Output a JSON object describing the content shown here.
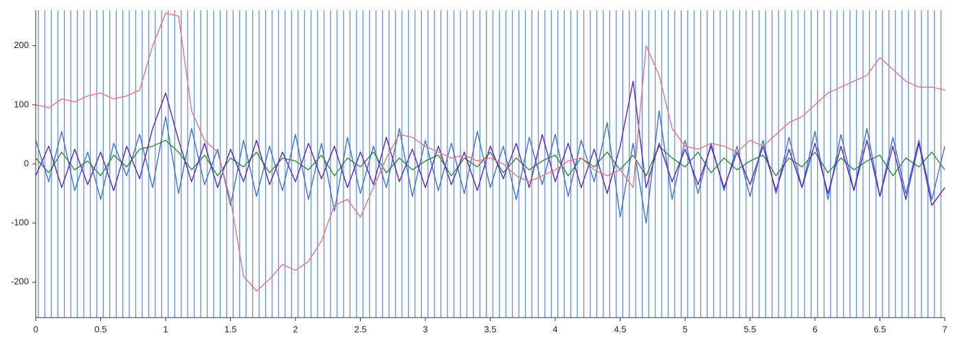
{
  "chart_data": {
    "type": "line",
    "x": [
      0,
      0.1,
      0.2,
      0.3,
      0.4,
      0.5,
      0.6,
      0.7,
      0.8,
      0.9,
      1,
      1.1,
      1.2,
      1.3,
      1.4,
      1.5,
      1.6,
      1.7,
      1.8,
      1.9,
      2,
      2.1,
      2.2,
      2.3,
      2.4,
      2.5,
      2.6,
      2.7,
      2.8,
      2.9,
      3,
      3.1,
      3.2,
      3.3,
      3.4,
      3.5,
      3.6,
      3.7,
      3.8,
      3.9,
      4,
      4.1,
      4.2,
      4.3,
      4.4,
      4.5,
      4.6,
      4.7,
      4.8,
      4.9,
      5,
      5.1,
      5.2,
      5.3,
      5.4,
      5.5,
      5.6,
      5.7,
      5.8,
      5.9,
      6,
      6.1,
      6.2,
      6.3,
      6.4,
      6.5,
      6.6,
      6.7,
      6.8,
      6.9,
      7
    ],
    "series": [
      {
        "color": "#3b6fe0",
        "values": [
          40,
          -30,
          55,
          -45,
          20,
          -60,
          35,
          -20,
          50,
          -40,
          80,
          -50,
          60,
          -35,
          25,
          -70,
          40,
          -55,
          30,
          -45,
          50,
          -60,
          35,
          -80,
          45,
          -50,
          30,
          -40,
          60,
          -55,
          40,
          -45,
          35,
          -50,
          55,
          -40,
          30,
          -60,
          45,
          -35,
          50,
          -55,
          40,
          -30,
          70,
          -90,
          35,
          -100,
          90,
          -60,
          40,
          -50,
          35,
          -45,
          30,
          -55,
          40,
          -50,
          45,
          -40,
          55,
          -60,
          50,
          -45,
          60,
          -55,
          45,
          -50,
          40,
          -60,
          30
        ]
      },
      {
        "color": "#2e8b2e",
        "values": [
          10,
          -15,
          20,
          -10,
          5,
          -20,
          15,
          -5,
          25,
          30,
          40,
          20,
          -10,
          15,
          -20,
          10,
          -5,
          20,
          -15,
          10,
          5,
          -10,
          15,
          -20,
          10,
          -5,
          20,
          -15,
          10,
          -10,
          5,
          15,
          -20,
          10,
          -5,
          20,
          -15,
          10,
          -10,
          5,
          15,
          -20,
          10,
          -5,
          20,
          -10,
          15,
          -20,
          30,
          10,
          -5,
          20,
          -15,
          10,
          -10,
          5,
          15,
          -20,
          10,
          -5,
          20,
          -15,
          10,
          -10,
          5,
          15,
          -20,
          10,
          -5,
          20,
          -10
        ]
      },
      {
        "color": "#5a1fd0",
        "values": [
          -20,
          30,
          -40,
          25,
          -35,
          20,
          -45,
          30,
          -25,
          60,
          120,
          40,
          -30,
          35,
          -40,
          25,
          -30,
          40,
          -35,
          20,
          -30,
          35,
          -25,
          30,
          -40,
          20,
          -35,
          45,
          -30,
          25,
          -40,
          30,
          -35,
          20,
          -45,
          30,
          -25,
          35,
          -40,
          50,
          -30,
          35,
          -40,
          25,
          -50,
          30,
          140,
          -40,
          35,
          -30,
          25,
          -35,
          30,
          -40,
          20,
          -35,
          30,
          -45,
          25,
          -40,
          35,
          -50,
          30,
          -45,
          40,
          -55,
          30,
          -60,
          35,
          -70,
          -40
        ]
      },
      {
        "color": "#e8737a",
        "values": [
          100,
          95,
          110,
          105,
          115,
          120,
          110,
          115,
          125,
          200,
          255,
          250,
          90,
          40,
          20,
          -60,
          -190,
          -215,
          -195,
          -170,
          -180,
          -165,
          -130,
          -70,
          -60,
          -90,
          -40,
          10,
          50,
          45,
          30,
          20,
          10,
          15,
          5,
          10,
          0,
          -20,
          -30,
          -20,
          -10,
          5,
          10,
          -10,
          -20,
          -10,
          -40,
          200,
          150,
          60,
          30,
          25,
          35,
          30,
          20,
          40,
          30,
          50,
          70,
          80,
          100,
          120,
          130,
          140,
          150,
          180,
          160,
          140,
          130,
          130,
          125
        ]
      }
    ],
    "event_x": [
      0.02,
      0.07,
      0.12,
      0.17,
      0.22,
      0.27,
      0.32,
      0.37,
      0.42,
      0.47,
      0.52,
      0.57,
      0.62,
      0.67,
      0.72,
      0.77,
      0.82,
      0.87,
      0.92,
      0.97,
      1.02,
      1.07,
      1.12,
      1.17,
      1.22,
      1.27,
      1.32,
      1.37,
      1.42,
      1.47,
      1.52,
      1.57,
      1.62,
      1.67,
      1.72,
      1.77,
      1.82,
      1.87,
      1.92,
      1.97,
      2.02,
      2.07,
      2.12,
      2.17,
      2.22,
      2.27,
      2.32,
      2.37,
      2.42,
      2.47,
      2.52,
      2.57,
      2.62,
      2.67,
      2.72,
      2.77,
      2.82,
      2.87,
      2.92,
      2.97,
      3.02,
      3.07,
      3.12,
      3.17,
      3.22,
      3.27,
      3.32,
      3.37,
      3.42,
      3.47,
      3.52,
      3.57,
      3.62,
      3.67,
      3.72,
      3.77,
      3.82,
      3.87,
      3.92,
      3.97,
      4.02,
      4.07,
      4.12,
      4.17,
      4.22,
      4.27,
      4.32,
      4.37,
      4.42,
      4.47,
      4.52,
      4.57,
      4.62,
      4.67,
      4.72,
      4.77,
      4.82,
      4.87,
      4.92,
      4.97,
      5.02,
      5.07,
      5.12,
      5.17,
      5.22,
      5.27,
      5.32,
      5.37,
      5.42,
      5.47,
      5.52,
      5.57,
      5.62,
      5.67,
      5.72,
      5.77,
      5.82,
      5.87,
      5.92,
      5.97,
      6.02,
      6.07,
      6.12,
      6.17,
      6.22,
      6.27,
      6.32,
      6.37,
      6.42,
      6.47,
      6.52,
      6.57,
      6.62,
      6.67,
      6.72,
      6.77,
      6.82,
      6.87,
      6.92,
      6.97
    ],
    "event_color": "#5b8ff0",
    "xlim": [
      0,
      7
    ],
    "xticks": [
      0,
      0.5,
      1,
      1.5,
      2,
      2.5,
      3,
      3.5,
      4,
      4.5,
      5,
      5.5,
      6,
      6.5,
      7
    ],
    "ylim": [
      -260,
      260
    ],
    "yticks": [
      -200,
      -100,
      0,
      100,
      200
    ]
  }
}
